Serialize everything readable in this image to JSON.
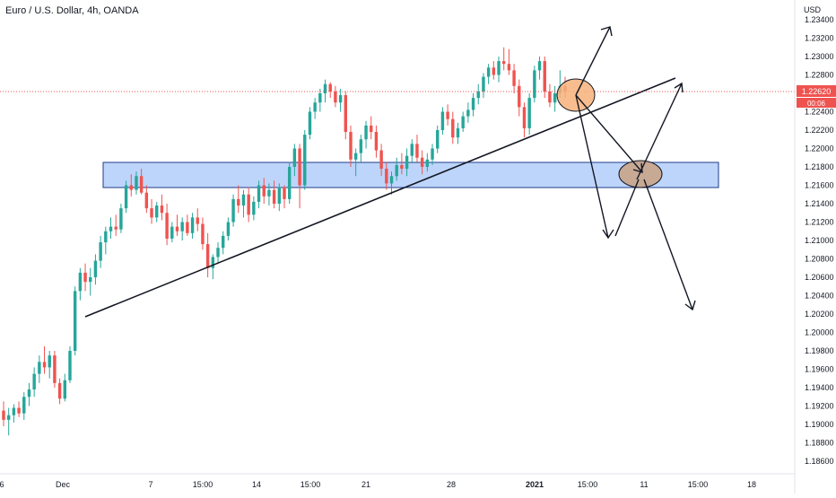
{
  "chart_title": "Euro / U.S. Dollar, 4h, OANDA",
  "currency": "USD",
  "price_tag": "1.22620",
  "countdown": "00:06",
  "colors": {
    "up": "#26a69a",
    "down": "#ef5350",
    "zone_fill": "#aecbfa",
    "zone_stroke": "#1e3a8a",
    "circle_orange": "#f7b27a",
    "circle_tan": "#c8a488",
    "price_line": "#ef5350",
    "axis_text": "#131722",
    "border": "#e0e3eb"
  },
  "chart_data": {
    "type": "candlestick",
    "title": "Euro / U.S. Dollar, 4h, OANDA",
    "ylim": [
      1.1848,
      1.2362
    ],
    "y_ticks": [
      "1.23400",
      "1.23200",
      "1.23000",
      "1.22800",
      "1.22600",
      "1.22400",
      "1.22200",
      "1.22000",
      "1.21800",
      "1.21600",
      "1.21400",
      "1.21200",
      "1.21000",
      "1.20800",
      "1.20600",
      "1.20400",
      "1.20200",
      "1.20000",
      "1.19800",
      "1.19600",
      "1.19400",
      "1.19200",
      "1.19000",
      "1.18800",
      "1.18600"
    ],
    "x_ticks": [
      "6",
      "Dec",
      "7",
      "15:00",
      "14",
      "15:00",
      "21",
      "28",
      "2021",
      "15:00",
      "11",
      "15:00",
      "18"
    ],
    "last_price": 1.2262,
    "candles": [
      [
        1.1915,
        1.1925,
        1.1898,
        1.1905
      ],
      [
        1.1905,
        1.1918,
        1.1888,
        1.191
      ],
      [
        1.191,
        1.1922,
        1.1902,
        1.1918
      ],
      [
        1.1918,
        1.1925,
        1.1908,
        1.1912
      ],
      [
        1.1912,
        1.1935,
        1.1905,
        1.193
      ],
      [
        1.193,
        1.1945,
        1.192,
        1.1938
      ],
      [
        1.1938,
        1.1962,
        1.193,
        1.1955
      ],
      [
        1.1955,
        1.1975,
        1.1945,
        1.1968
      ],
      [
        1.1968,
        1.1985,
        1.1955,
        1.1962
      ],
      [
        1.1962,
        1.198,
        1.195,
        1.1975
      ],
      [
        1.1975,
        1.198,
        1.194,
        1.1945
      ],
      [
        1.1945,
        1.195,
        1.1922,
        1.1928
      ],
      [
        1.1928,
        1.1955,
        1.1925,
        1.1948
      ],
      [
        1.1948,
        1.1985,
        1.1945,
        1.198
      ],
      [
        1.198,
        1.205,
        1.1975,
        1.2045
      ],
      [
        1.2045,
        1.207,
        1.2035,
        1.2065
      ],
      [
        1.2065,
        1.2075,
        1.2045,
        1.2055
      ],
      [
        1.2055,
        1.207,
        1.204,
        1.206
      ],
      [
        1.206,
        1.2085,
        1.2052,
        1.2078
      ],
      [
        1.2078,
        1.2105,
        1.207,
        1.2098
      ],
      [
        1.2098,
        1.2115,
        1.2085,
        1.211
      ],
      [
        1.211,
        1.2125,
        1.2102,
        1.2115
      ],
      [
        1.2115,
        1.2128,
        1.2105,
        1.2112
      ],
      [
        1.2112,
        1.214,
        1.2108,
        1.2135
      ],
      [
        1.2135,
        1.2165,
        1.213,
        1.216
      ],
      [
        1.216,
        1.2172,
        1.2148,
        1.2155
      ],
      [
        1.2155,
        1.2175,
        1.215,
        1.217
      ],
      [
        1.217,
        1.2178,
        1.215,
        1.2152
      ],
      [
        1.2152,
        1.216,
        1.213,
        1.2135
      ],
      [
        1.2135,
        1.2145,
        1.2118,
        1.2125
      ],
      [
        1.2125,
        1.2142,
        1.212,
        1.2138
      ],
      [
        1.2138,
        1.215,
        1.2122,
        1.213
      ],
      [
        1.213,
        1.214,
        1.2095,
        1.2102
      ],
      [
        1.2102,
        1.212,
        1.2098,
        1.2115
      ],
      [
        1.2115,
        1.2128,
        1.2105,
        1.211
      ],
      [
        1.211,
        1.2125,
        1.21,
        1.212
      ],
      [
        1.212,
        1.2128,
        1.2105,
        1.2108
      ],
      [
        1.2108,
        1.213,
        1.2102,
        1.2125
      ],
      [
        1.2125,
        1.2135,
        1.211,
        1.2118
      ],
      [
        1.2118,
        1.2125,
        1.209,
        1.2096
      ],
      [
        1.2096,
        1.2108,
        1.206,
        1.207
      ],
      [
        1.207,
        1.2085,
        1.2058,
        1.2082
      ],
      [
        1.2082,
        1.2098,
        1.2075,
        1.2092
      ],
      [
        1.2092,
        1.211,
        1.2085,
        1.2105
      ],
      [
        1.2105,
        1.2125,
        1.21,
        1.212
      ],
      [
        1.212,
        1.215,
        1.2115,
        1.2145
      ],
      [
        1.2145,
        1.216,
        1.213,
        1.2138
      ],
      [
        1.2138,
        1.2155,
        1.2125,
        1.215
      ],
      [
        1.215,
        1.2158,
        1.212,
        1.2128
      ],
      [
        1.2128,
        1.2148,
        1.2122,
        1.2142
      ],
      [
        1.2142,
        1.2165,
        1.2135,
        1.216
      ],
      [
        1.216,
        1.2168,
        1.214,
        1.2148
      ],
      [
        1.2148,
        1.2162,
        1.2138,
        1.2155
      ],
      [
        1.2155,
        1.2165,
        1.2135,
        1.214
      ],
      [
        1.214,
        1.2162,
        1.2132,
        1.2158
      ],
      [
        1.2158,
        1.216,
        1.2135,
        1.2145
      ],
      [
        1.2145,
        1.2185,
        1.214,
        1.218
      ],
      [
        1.218,
        1.2205,
        1.217,
        1.22
      ],
      [
        1.22,
        1.2205,
        1.2135,
        1.216
      ],
      [
        1.216,
        1.222,
        1.2155,
        1.2215
      ],
      [
        1.2215,
        1.2245,
        1.221,
        1.224
      ],
      [
        1.224,
        1.2255,
        1.2232,
        1.225
      ],
      [
        1.225,
        1.2265,
        1.224,
        1.226
      ],
      [
        1.226,
        1.2275,
        1.225,
        1.227
      ],
      [
        1.227,
        1.2272,
        1.2255,
        1.2262
      ],
      [
        1.2262,
        1.2268,
        1.2245,
        1.225
      ],
      [
        1.225,
        1.2265,
        1.224,
        1.2258
      ],
      [
        1.2258,
        1.2262,
        1.221,
        1.2218
      ],
      [
        1.2218,
        1.2225,
        1.218,
        1.2188
      ],
      [
        1.2188,
        1.22,
        1.217,
        1.2195
      ],
      [
        1.2195,
        1.2215,
        1.2185,
        1.221
      ],
      [
        1.221,
        1.223,
        1.22,
        1.2225
      ],
      [
        1.2225,
        1.2235,
        1.221,
        1.2218
      ],
      [
        1.2218,
        1.2225,
        1.219,
        1.2198
      ],
      [
        1.2198,
        1.2205,
        1.217,
        1.2178
      ],
      [
        1.2178,
        1.2185,
        1.2155,
        1.2162
      ],
      [
        1.2162,
        1.2175,
        1.215,
        1.217
      ],
      [
        1.217,
        1.219,
        1.2165,
        1.2182
      ],
      [
        1.2182,
        1.2195,
        1.2172,
        1.2178
      ],
      [
        1.2178,
        1.22,
        1.217,
        1.2192
      ],
      [
        1.2192,
        1.221,
        1.2185,
        1.2205
      ],
      [
        1.2205,
        1.2215,
        1.2185,
        1.219
      ],
      [
        1.219,
        1.2198,
        1.2172,
        1.218
      ],
      [
        1.218,
        1.2195,
        1.2175,
        1.2188
      ],
      [
        1.2188,
        1.2205,
        1.2182,
        1.22
      ],
      [
        1.22,
        1.2225,
        1.2195,
        1.222
      ],
      [
        1.222,
        1.2245,
        1.2215,
        1.224
      ],
      [
        1.224,
        1.2248,
        1.2225,
        1.2232
      ],
      [
        1.2232,
        1.224,
        1.2205,
        1.2212
      ],
      [
        1.2212,
        1.2228,
        1.2205,
        1.2222
      ],
      [
        1.2222,
        1.224,
        1.2218,
        1.2235
      ],
      [
        1.2235,
        1.225,
        1.2228,
        1.2242
      ],
      [
        1.2242,
        1.226,
        1.2235,
        1.2255
      ],
      [
        1.2255,
        1.227,
        1.2248,
        1.2262
      ],
      [
        1.2262,
        1.2282,
        1.2255,
        1.2278
      ],
      [
        1.2278,
        1.2292,
        1.227,
        1.2288
      ],
      [
        1.2288,
        1.2295,
        1.2275,
        1.228
      ],
      [
        1.228,
        1.23,
        1.2272,
        1.2295
      ],
      [
        1.2295,
        1.231,
        1.2285,
        1.2292
      ],
      [
        1.2292,
        1.2308,
        1.228,
        1.2285
      ],
      [
        1.2285,
        1.2292,
        1.226,
        1.2268
      ],
      [
        1.2268,
        1.2275,
        1.2235,
        1.2245
      ],
      [
        1.2245,
        1.225,
        1.2212,
        1.2222
      ],
      [
        1.2222,
        1.226,
        1.2215,
        1.2255
      ],
      [
        1.2255,
        1.229,
        1.225,
        1.2285
      ],
      [
        1.2285,
        1.23,
        1.2275,
        1.2295
      ],
      [
        1.2295,
        1.23,
        1.2255,
        1.2262
      ],
      [
        1.2262,
        1.227,
        1.2245,
        1.225
      ],
      [
        1.225,
        1.2268,
        1.224,
        1.226
      ],
      [
        1.226,
        1.2285,
        1.2255,
        1.2268
      ],
      [
        1.2268,
        1.2278,
        1.2255,
        1.2262
      ]
    ]
  }
}
